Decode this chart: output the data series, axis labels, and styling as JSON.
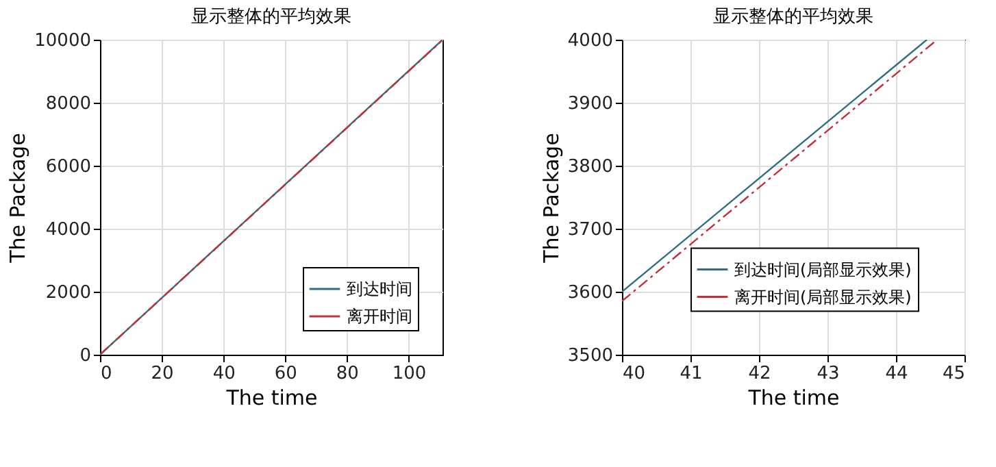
{
  "chart_data": [
    {
      "type": "line",
      "title": "显示整体的平均效果",
      "xlabel": "The time",
      "ylabel": "The Package",
      "xlim": [
        0,
        111
      ],
      "ylim": [
        0,
        10000
      ],
      "xticks": [
        0,
        20,
        40,
        60,
        80,
        100
      ],
      "yticks": [
        0,
        2000,
        4000,
        6000,
        8000,
        10000
      ],
      "grid": true,
      "legend": "bottom right",
      "series": [
        {
          "name": "到达时间",
          "color": "#2f6f7f",
          "line_style": "solid",
          "x": [
            0,
            111
          ],
          "values": [
            0,
            10000
          ]
        },
        {
          "name": "离开时间",
          "color": "#c0303a",
          "line_style": "dashed",
          "x": [
            0,
            111
          ],
          "values": [
            0,
            9990
          ]
        }
      ]
    },
    {
      "type": "line",
      "title": "显示整体的平均效果",
      "xlabel": "The time",
      "ylabel": "The Package",
      "xlim": [
        40,
        45
      ],
      "ylim": [
        3500,
        4000
      ],
      "xticks": [
        40,
        41,
        42,
        43,
        44,
        45
      ],
      "yticks": [
        3500,
        3600,
        3700,
        3800,
        3900,
        4000
      ],
      "grid": true,
      "legend": "bottom",
      "series": [
        {
          "name": "到达时间(局部显示效果)",
          "color": "#2f6f7f",
          "line_style": "solid",
          "x": [
            40,
            44.45
          ],
          "values": [
            3600,
            4000
          ]
        },
        {
          "name": "离开时间(局部显示效果)",
          "color": "#c0303a",
          "line_style": "dashed",
          "x": [
            40,
            44.6
          ],
          "values": [
            3585,
            4000
          ]
        }
      ]
    }
  ]
}
